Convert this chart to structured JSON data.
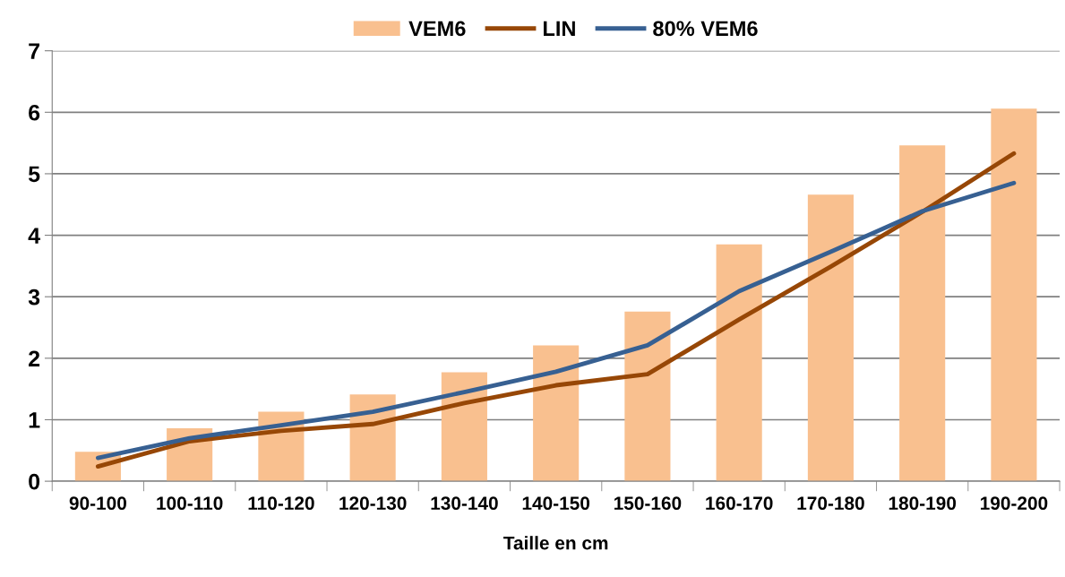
{
  "chart_data": {
    "type": "bar",
    "xlabel": "Taille en cm",
    "categories": [
      "90-100",
      "100-110",
      "110-120",
      "120-130",
      "130-140",
      "140-150",
      "150-160",
      "160-170",
      "170-180",
      "180-190",
      "190-200"
    ],
    "series": [
      {
        "name": "VEM6",
        "color": "#f9c08f",
        "values": [
          0.48,
          0.86,
          1.13,
          1.41,
          1.77,
          2.21,
          2.76,
          3.85,
          4.66,
          5.46,
          6.06
        ]
      },
      {
        "name": "LIN",
        "type": "line",
        "color": "#974706",
        "values": [
          0.24,
          0.65,
          0.82,
          0.93,
          1.27,
          1.56,
          1.74,
          2.63,
          3.49,
          4.38,
          5.33
        ]
      },
      {
        "name": "80% VEM6",
        "type": "line",
        "color": "#376092",
        "values": [
          0.38,
          0.7,
          0.91,
          1.13,
          1.45,
          1.78,
          2.21,
          3.09,
          3.73,
          4.39,
          4.85
        ]
      }
    ],
    "ylim": [
      0,
      7
    ],
    "yticks": [
      0,
      1,
      2,
      3,
      4,
      5,
      6,
      7
    ],
    "grid": "y",
    "legend": "top",
    "marker": "none",
    "line_style": "solid"
  }
}
